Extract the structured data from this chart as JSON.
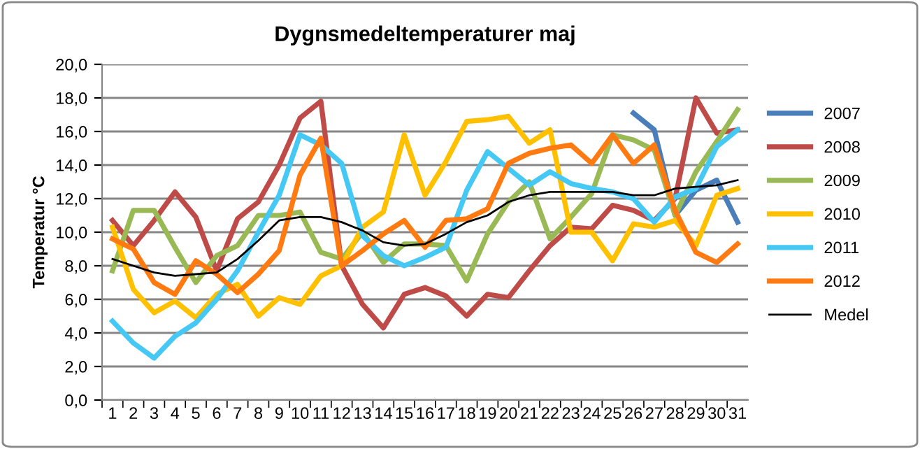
{
  "chart_data": {
    "type": "line",
    "title": "Dygnsmedeltemperaturer maj",
    "ylabel": "Temperatur °C",
    "categories": [
      "1",
      "2",
      "3",
      "4",
      "5",
      "6",
      "7",
      "8",
      "9",
      "10",
      "11",
      "12",
      "13",
      "14",
      "15",
      "16",
      "17",
      "18",
      "19",
      "20",
      "21",
      "22",
      "23",
      "24",
      "25",
      "26",
      "27",
      "28",
      "29",
      "30",
      "31"
    ],
    "ylim": [
      0,
      20
    ],
    "yticks": [
      {
        "value": 0,
        "label": "0,0"
      },
      {
        "value": 2,
        "label": "2,0"
      },
      {
        "value": 4,
        "label": "4,0"
      },
      {
        "value": 6,
        "label": "6,0"
      },
      {
        "value": 8,
        "label": "8,0"
      },
      {
        "value": 10,
        "label": "10,0"
      },
      {
        "value": 12,
        "label": "12,0"
      },
      {
        "value": 14,
        "label": "14,0"
      },
      {
        "value": 16,
        "label": "16,0"
      },
      {
        "value": 18,
        "label": "18,0"
      },
      {
        "value": 20,
        "label": "20,0"
      }
    ],
    "grid": "y",
    "legend": "right",
    "marker": "none",
    "line_style": "solid",
    "series": [
      {
        "name": "2007",
        "color": "#4a7ebb",
        "values": [
          null,
          null,
          null,
          null,
          null,
          null,
          null,
          null,
          null,
          null,
          null,
          null,
          null,
          null,
          null,
          null,
          null,
          null,
          null,
          null,
          null,
          null,
          null,
          null,
          null,
          17.1,
          16.1,
          11.0,
          12.5,
          13.1,
          10.6
        ]
      },
      {
        "name": "2008",
        "color": "#be4b48",
        "values": [
          10.7,
          9.2,
          10.7,
          12.4,
          10.9,
          7.7,
          10.8,
          11.8,
          14.0,
          16.8,
          17.8,
          8.0,
          5.7,
          4.3,
          6.3,
          6.7,
          6.2,
          5.0,
          6.3,
          6.1,
          7.7,
          9.2,
          10.3,
          10.2,
          11.6,
          11.3,
          10.7,
          12.0,
          18.0,
          15.9,
          16.1
        ]
      },
      {
        "name": "2009",
        "color": "#98b954",
        "values": [
          7.7,
          11.3,
          11.3,
          9.1,
          7.0,
          8.6,
          9.2,
          11.0,
          11.0,
          11.2,
          8.8,
          8.4,
          10.0,
          8.2,
          9.3,
          9.3,
          9.2,
          7.1,
          9.9,
          11.8,
          13.0,
          9.6,
          10.9,
          12.3,
          15.8,
          15.5,
          14.9,
          11.0,
          13.6,
          15.4,
          17.3
        ]
      },
      {
        "name": "2010",
        "color": "#ffc000",
        "values": [
          10.3,
          6.6,
          5.2,
          5.9,
          4.9,
          6.3,
          6.9,
          5.0,
          6.1,
          5.7,
          7.4,
          8.0,
          10.3,
          11.2,
          15.8,
          12.2,
          14.2,
          16.6,
          16.7,
          16.9,
          15.3,
          16.1,
          10.0,
          10.0,
          8.3,
          10.5,
          10.3,
          10.7,
          9.2,
          12.2,
          12.6
        ]
      },
      {
        "name": "2011",
        "color": "#46c8f5",
        "values": [
          4.7,
          3.4,
          2.5,
          3.8,
          4.6,
          6.0,
          7.7,
          10.0,
          12.2,
          15.8,
          15.2,
          14.1,
          9.8,
          8.6,
          8.0,
          8.5,
          9.1,
          12.5,
          14.8,
          13.8,
          12.8,
          13.6,
          12.9,
          12.6,
          12.4,
          12.0,
          10.6,
          12.1,
          12.6,
          15.1,
          16.1
        ]
      },
      {
        "name": "2012",
        "color": "#ff7a10",
        "values": [
          9.6,
          9.0,
          7.0,
          6.3,
          8.3,
          7.5,
          6.4,
          7.5,
          8.9,
          13.4,
          15.6,
          8.0,
          8.9,
          9.9,
          10.7,
          9.1,
          10.7,
          10.8,
          11.4,
          14.1,
          14.7,
          15.0,
          15.2,
          14.1,
          15.8,
          14.1,
          15.2,
          11.3,
          8.8,
          8.2,
          9.3
        ]
      },
      {
        "name": "Medel",
        "color": "#000000",
        "values": [
          8.4,
          8.0,
          7.6,
          7.4,
          7.5,
          7.6,
          8.4,
          9.5,
          10.7,
          10.9,
          10.9,
          10.6,
          10.1,
          9.4,
          9.2,
          9.3,
          9.9,
          10.6,
          11.0,
          11.8,
          12.2,
          12.4,
          12.4,
          12.4,
          12.4,
          12.2,
          12.2,
          12.6,
          12.7,
          12.8,
          13.1
        ]
      }
    ]
  }
}
